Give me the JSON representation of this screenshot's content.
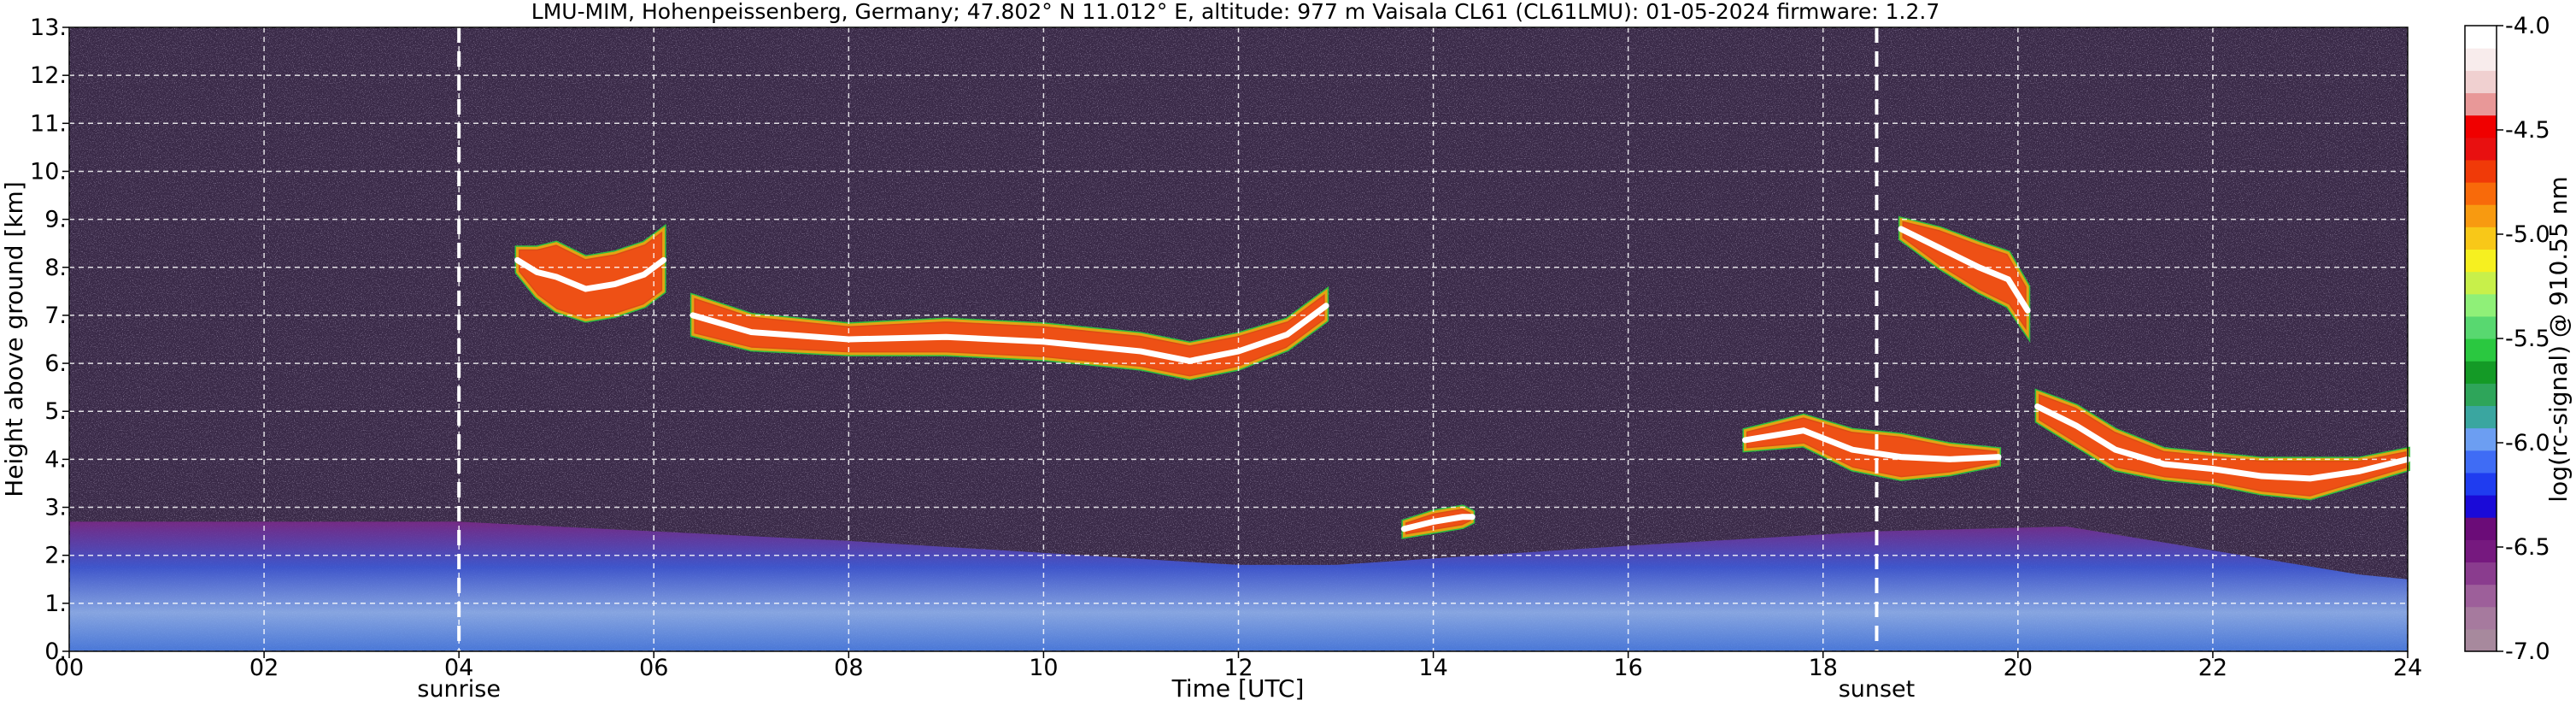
{
  "chart_data": {
    "type": "heatmap",
    "title": "LMU-MIM, Hohenpeissenberg, Germany; 47.802° N 11.012° E, altitude: 977 m    Vaisala CL61 (CL61LMU): 01-05-2024    firmware: 1.2.7",
    "xlabel": "Time [UTC]",
    "ylabel": "Height above ground [km]",
    "xlim": [
      0,
      24
    ],
    "ylim": [
      0,
      13
    ],
    "x_ticks": [
      0,
      2,
      4,
      6,
      8,
      10,
      12,
      14,
      16,
      18,
      20,
      22,
      24
    ],
    "x_tick_labels": [
      "00",
      "02",
      "04",
      "06",
      "08",
      "10",
      "12",
      "14",
      "16",
      "18",
      "20",
      "22",
      "24"
    ],
    "y_ticks": [
      0,
      1,
      2,
      3,
      4,
      5,
      6,
      7,
      8,
      9,
      10,
      11,
      12,
      13
    ],
    "y_tick_labels": [
      "0.",
      "1.",
      "2.",
      "3.",
      "4.",
      "5.",
      "6.",
      "7.",
      "8.",
      "9.",
      "10.",
      "11.",
      "12.",
      "13."
    ],
    "grid": true,
    "markers": [
      {
        "label": "sunrise",
        "time": 4.0
      },
      {
        "label": "sunset",
        "time": 18.55
      }
    ],
    "colorbar": {
      "label": "log(rc-signal) @ 910.55 nm",
      "range": [
        -7.0,
        -4.0
      ],
      "ticks": [
        -4.0,
        -4.5,
        -5.0,
        -5.5,
        -6.0,
        -6.5,
        -7.0
      ],
      "tick_labels": [
        "-4.0",
        "-4.5",
        "-5.0",
        "-5.5",
        "-6.0",
        "-6.5",
        "-7.0"
      ],
      "colors": [
        "#a7899d",
        "#a67a9e",
        "#9d5f9a",
        "#8a3c8e",
        "#76197f",
        "#6b0c78",
        "#1a0ad8",
        "#1f3cf0",
        "#3f6cf5",
        "#6c9ef2",
        "#3aa6a0",
        "#2ea55a",
        "#149a26",
        "#2ac840",
        "#58d870",
        "#8ff078",
        "#c8f04a",
        "#f6f020",
        "#f8c818",
        "#f89a10",
        "#f86a0a",
        "#f03a08",
        "#e81010",
        "#f00000",
        "#e89898",
        "#f0d0d0",
        "#f8ecec",
        "#ffffff"
      ]
    },
    "layers": [
      {
        "name": "boundary-layer",
        "x": [
          0,
          4,
          8,
          12,
          13,
          16,
          18.55,
          20.5,
          23.5,
          24
        ],
        "top": [
          2.7,
          2.7,
          2.3,
          1.8,
          1.8,
          2.2,
          2.5,
          2.6,
          1.6,
          1.5
        ]
      },
      {
        "name": "cirrus-morning",
        "x": [
          4.6,
          4.8,
          5.0,
          5.3,
          5.6,
          5.9,
          6.1
        ],
        "base": [
          7.9,
          7.4,
          7.1,
          6.9,
          7.0,
          7.2,
          7.5
        ],
        "top": [
          8.4,
          8.4,
          8.5,
          8.2,
          8.3,
          8.5,
          8.8
        ]
      },
      {
        "name": "cirrus-midday",
        "x": [
          6.4,
          7,
          8,
          9,
          10,
          11,
          11.5,
          12,
          12.5,
          12.9
        ],
        "base": [
          6.6,
          6.3,
          6.2,
          6.2,
          6.1,
          5.9,
          5.7,
          5.9,
          6.3,
          6.9
        ],
        "top": [
          7.4,
          7.0,
          6.8,
          6.9,
          6.8,
          6.6,
          6.4,
          6.6,
          6.9,
          7.5
        ]
      },
      {
        "name": "cloud-14h",
        "x": [
          13.7,
          14.0,
          14.3,
          14.4
        ],
        "base": [
          2.4,
          2.5,
          2.6,
          2.7
        ],
        "top": [
          2.7,
          2.9,
          3.0,
          2.9
        ]
      },
      {
        "name": "cloud-evening-low",
        "x": [
          17.2,
          17.8,
          18.3,
          18.8,
          19.3,
          19.8
        ],
        "base": [
          4.2,
          4.3,
          3.8,
          3.6,
          3.7,
          3.9
        ],
        "top": [
          4.6,
          4.9,
          4.6,
          4.5,
          4.3,
          4.2
        ]
      },
      {
        "name": "cirrus-evening",
        "x": [
          18.8,
          19.2,
          19.6,
          19.9,
          20.1
        ],
        "base": [
          8.6,
          8.0,
          7.5,
          7.2,
          6.6
        ],
        "top": [
          9.0,
          8.8,
          8.5,
          8.3,
          7.6
        ]
      },
      {
        "name": "cloud-night",
        "x": [
          20.2,
          20.6,
          21.0,
          21.5,
          22.0,
          22.5,
          23.0,
          23.5,
          24.0
        ],
        "base": [
          4.8,
          4.3,
          3.8,
          3.6,
          3.5,
          3.3,
          3.2,
          3.5,
          3.8
        ],
        "top": [
          5.4,
          5.1,
          4.6,
          4.2,
          4.1,
          4.0,
          4.0,
          4.0,
          4.2
        ]
      }
    ]
  }
}
